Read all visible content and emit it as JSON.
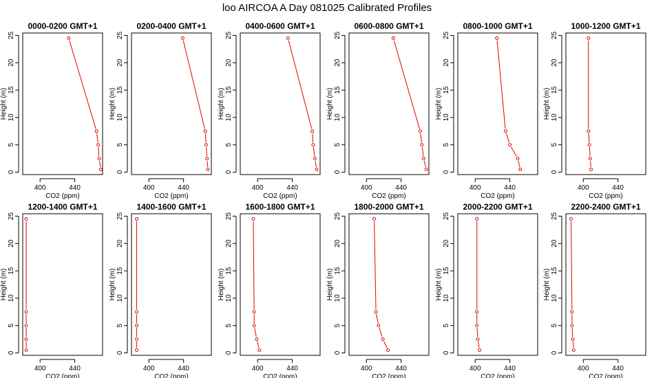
{
  "title": "loo AIRCOA A  Day 081025  Calibrated Profiles",
  "colors": {
    "profile": "#dd0000",
    "frame": "#000000",
    "background": "#ffffff"
  },
  "chart_data": [
    {
      "type": "line",
      "title": "0000-0200 GMT+1",
      "xlabel": "CO2 (ppm)",
      "ylabel": "Height (m)",
      "xlim": [
        380,
        472
      ],
      "ylim": [
        0,
        25
      ],
      "xticks": [
        400,
        440
      ],
      "yticks": [
        0,
        5,
        10,
        15,
        20,
        25
      ],
      "x": [
        470,
        468,
        467,
        465,
        433
      ],
      "y": [
        0.5,
        2.5,
        5,
        7.5,
        24.5
      ]
    },
    {
      "type": "line",
      "title": "0200-0400 GMT+1",
      "xlabel": "CO2 (ppm)",
      "ylabel": "Height (m)",
      "xlim": [
        380,
        472
      ],
      "ylim": [
        0,
        25
      ],
      "xticks": [
        400,
        440
      ],
      "yticks": [
        0,
        5,
        10,
        15,
        20,
        25
      ],
      "x": [
        468,
        467,
        466,
        465,
        439
      ],
      "y": [
        0.5,
        2.5,
        5,
        7.5,
        24.5
      ]
    },
    {
      "type": "line",
      "title": "0400-0600 GMT+1",
      "xlabel": "CO2 (ppm)",
      "ylabel": "Height (m)",
      "xlim": [
        380,
        472
      ],
      "ylim": [
        0,
        25
      ],
      "xticks": [
        400,
        440
      ],
      "yticks": [
        0,
        5,
        10,
        15,
        20,
        25
      ],
      "x": [
        468,
        466,
        464,
        463,
        435
      ],
      "y": [
        0.5,
        2.5,
        5,
        7.5,
        24.5
      ]
    },
    {
      "type": "line",
      "title": "0600-0800 GMT+1",
      "xlabel": "CO2 (ppm)",
      "ylabel": "Height (m)",
      "xlim": [
        380,
        472
      ],
      "ylim": [
        0,
        25
      ],
      "xticks": [
        400,
        440
      ],
      "yticks": [
        0,
        5,
        10,
        15,
        20,
        25
      ],
      "x": [
        469,
        466,
        464,
        462,
        431
      ],
      "y": [
        0.5,
        2.5,
        5,
        7.5,
        24.5
      ]
    },
    {
      "type": "line",
      "title": "0800-1000 GMT+1",
      "xlabel": "CO2 (ppm)",
      "ylabel": "Height (m)",
      "xlim": [
        380,
        472
      ],
      "ylim": [
        0,
        25
      ],
      "xticks": [
        400,
        440
      ],
      "yticks": [
        0,
        5,
        10,
        15,
        20,
        25
      ],
      "x": [
        452,
        449,
        440,
        435,
        425
      ],
      "y": [
        0.5,
        2.5,
        5,
        7.5,
        24.5
      ]
    },
    {
      "type": "line",
      "title": "1000-1200 GMT+1",
      "xlabel": "CO2 (ppm)",
      "ylabel": "Height (m)",
      "xlim": [
        380,
        472
      ],
      "ylim": [
        0,
        25
      ],
      "xticks": [
        400,
        440
      ],
      "yticks": [
        0,
        5,
        10,
        15,
        20,
        25
      ],
      "x": [
        409,
        408,
        407,
        406,
        406
      ],
      "y": [
        0.5,
        2.5,
        5,
        7.5,
        24.5
      ]
    },
    {
      "type": "line",
      "title": "1200-1400 GMT+1",
      "xlabel": "CO2 (ppm)",
      "ylabel": "Height (m)",
      "xlim": [
        380,
        472
      ],
      "ylim": [
        0,
        25
      ],
      "xticks": [
        400,
        440
      ],
      "yticks": [
        0,
        5,
        10,
        15,
        20,
        25
      ],
      "x": [
        384,
        384,
        384,
        384,
        384
      ],
      "y": [
        0.5,
        2.5,
        5,
        7.5,
        24.5
      ]
    },
    {
      "type": "line",
      "title": "1400-1600 GMT+1",
      "xlabel": "CO2 (ppm)",
      "ylabel": "Height (m)",
      "xlim": [
        380,
        472
      ],
      "ylim": [
        0,
        25
      ],
      "xticks": [
        400,
        440
      ],
      "yticks": [
        0,
        5,
        10,
        15,
        20,
        25
      ],
      "x": [
        386,
        386,
        386,
        386,
        386
      ],
      "y": [
        0.5,
        2.5,
        5,
        7.5,
        24.5
      ]
    },
    {
      "type": "line",
      "title": "1600-1800 GMT+1",
      "xlabel": "CO2 (ppm)",
      "ylabel": "Height (m)",
      "xlim": [
        380,
        472
      ],
      "ylim": [
        0,
        25
      ],
      "xticks": [
        400,
        440
      ],
      "yticks": [
        0,
        5,
        10,
        15,
        20,
        25
      ],
      "x": [
        402,
        399,
        396,
        396,
        395
      ],
      "y": [
        0.5,
        2.5,
        5,
        7.5,
        24.5
      ]
    },
    {
      "type": "line",
      "title": "1800-2000 GMT+1",
      "xlabel": "CO2 (ppm)",
      "ylabel": "Height (m)",
      "xlim": [
        380,
        472
      ],
      "ylim": [
        0,
        25
      ],
      "xticks": [
        400,
        440
      ],
      "yticks": [
        0,
        5,
        10,
        15,
        20,
        25
      ],
      "x": [
        425,
        419,
        414,
        411,
        409
      ],
      "y": [
        0.5,
        2.5,
        5,
        7.5,
        24.5
      ]
    },
    {
      "type": "line",
      "title": "2000-2200 GMT+1",
      "xlabel": "CO2 (ppm)",
      "ylabel": "Height (m)",
      "xlim": [
        380,
        472
      ],
      "ylim": [
        0,
        25
      ],
      "xticks": [
        400,
        440
      ],
      "yticks": [
        0,
        5,
        10,
        15,
        20,
        25
      ],
      "x": [
        405,
        403,
        402,
        402,
        402
      ],
      "y": [
        0.5,
        2.5,
        5,
        7.5,
        24.5
      ]
    },
    {
      "type": "line",
      "title": "2200-2400 GMT+1",
      "xlabel": "CO2 (ppm)",
      "ylabel": "Height (m)",
      "xlim": [
        380,
        472
      ],
      "ylim": [
        0,
        25
      ],
      "xticks": [
        400,
        440
      ],
      "yticks": [
        0,
        5,
        10,
        15,
        20,
        25
      ],
      "x": [
        389,
        388,
        387,
        387,
        386
      ],
      "y": [
        0.5,
        2.5,
        5,
        7.5,
        24.5
      ]
    }
  ]
}
